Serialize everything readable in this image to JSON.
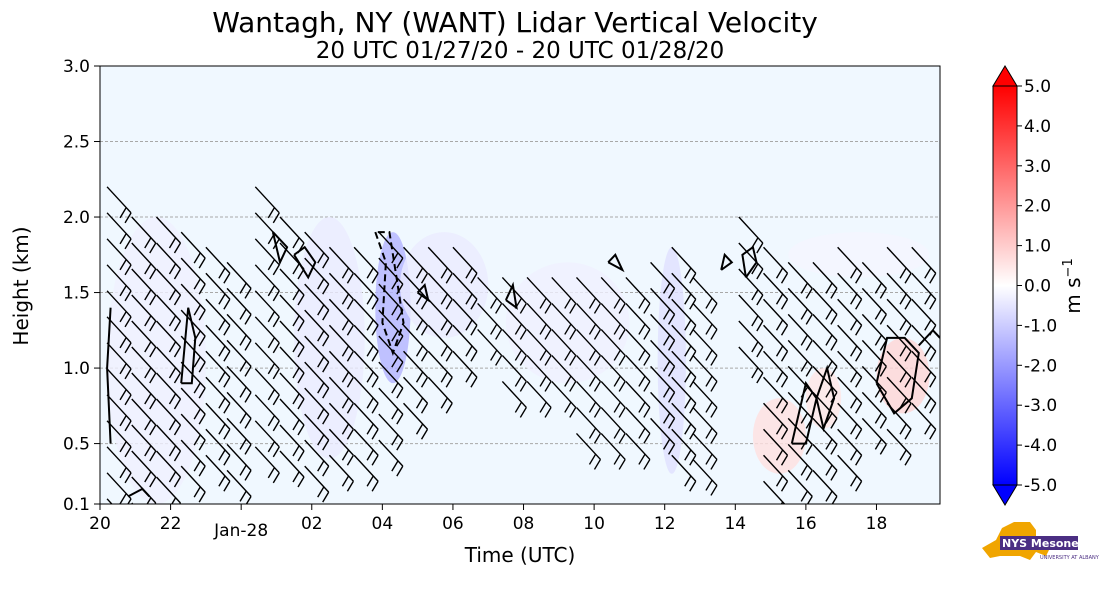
{
  "chart_data": {
    "type": "heatmap",
    "title": "Wantagh, NY (WANT) Lidar Vertical Velocity",
    "subtitle": "20 UTC 01/27/20 - 20 UTC 01/28/20",
    "xlabel": "Time (UTC)",
    "ylabel": "Height (km)",
    "xlim": [
      20,
      43.8
    ],
    "ylim": [
      0.1,
      3.0
    ],
    "x_ticks": [
      {
        "x": 20,
        "label": "20"
      },
      {
        "x": 22,
        "label": "22"
      },
      {
        "x": 24,
        "label": "Jan-28"
      },
      {
        "x": 26,
        "label": "02"
      },
      {
        "x": 28,
        "label": "04"
      },
      {
        "x": 30,
        "label": "06"
      },
      {
        "x": 32,
        "label": "08"
      },
      {
        "x": 34,
        "label": "10"
      },
      {
        "x": 36,
        "label": "12"
      },
      {
        "x": 38,
        "label": "14"
      },
      {
        "x": 40,
        "label": "16"
      },
      {
        "x": 42,
        "label": "18"
      }
    ],
    "y_ticks": [
      {
        "y": 0.1,
        "label": "0.1"
      },
      {
        "y": 0.5,
        "label": "0.5"
      },
      {
        "y": 1.0,
        "label": "1.0"
      },
      {
        "y": 1.5,
        "label": "1.5"
      },
      {
        "y": 2.0,
        "label": "2.0"
      },
      {
        "y": 2.5,
        "label": "2.5"
      },
      {
        "y": 3.0,
        "label": "3.0"
      }
    ],
    "grid": "horizontal dashed",
    "colorbar": {
      "label": "m s",
      "label_exponent": "−1",
      "range": [
        -5.0,
        5.0
      ],
      "ticks": [
        "5.0",
        "4.0",
        "3.0",
        "2.0",
        "1.0",
        "0.0",
        "-1.0",
        "-2.0",
        "-3.0",
        "-4.0",
        "-5.0"
      ],
      "colors": {
        "max": "#ff0000",
        "zero": "#ffffff",
        "min": "#0000ff"
      }
    },
    "velocity_regions": [
      {
        "x": [
          20.2,
          23.0
        ],
        "y": [
          0.1,
          2.0
        ],
        "w": -0.3
      },
      {
        "x": [
          25.5,
          27.5
        ],
        "y": [
          0.4,
          2.0
        ],
        "w": -0.4
      },
      {
        "x": [
          27.8,
          28.8
        ],
        "y": [
          0.9,
          1.9
        ],
        "w": -1.5
      },
      {
        "x": [
          28.5,
          31.0
        ],
        "y": [
          1.2,
          1.9
        ],
        "w": -0.4
      },
      {
        "x": [
          31.5,
          35.0
        ],
        "y": [
          0.9,
          1.7
        ],
        "w": -0.3
      },
      {
        "x": [
          35.8,
          36.6
        ],
        "y": [
          0.3,
          1.8
        ],
        "w": -0.6
      },
      {
        "x": [
          38.5,
          40.0
        ],
        "y": [
          0.3,
          0.8
        ],
        "w": 0.6
      },
      {
        "x": [
          40.0,
          41.0
        ],
        "y": [
          0.6,
          1.0
        ],
        "w": 0.5
      },
      {
        "x": [
          42.0,
          43.5
        ],
        "y": [
          0.7,
          1.2
        ],
        "w": 0.8
      },
      {
        "x": [
          39.5,
          43.5
        ],
        "y": [
          1.6,
          1.9
        ],
        "w": -0.2
      }
    ],
    "wind_columns": [
      {
        "x": 20.2,
        "bottom": 0.1,
        "top": 2.2,
        "barbs": 2
      },
      {
        "x": 20.9,
        "bottom": 0.1,
        "top": 2.0,
        "barbs": 2
      },
      {
        "x": 21.6,
        "bottom": 0.2,
        "top": 2.0,
        "barbs": 2
      },
      {
        "x": 22.3,
        "bottom": 0.2,
        "top": 1.9,
        "barbs": 2
      },
      {
        "x": 23.0,
        "bottom": 0.3,
        "top": 1.8,
        "barbs": 2
      },
      {
        "x": 23.6,
        "bottom": 0.3,
        "top": 1.7,
        "barbs": 2
      },
      {
        "x": 24.4,
        "bottom": 0.4,
        "top": 2.2,
        "barbs": 2
      },
      {
        "x": 25.1,
        "bottom": 0.4,
        "top": 2.0,
        "barbs": 2
      },
      {
        "x": 25.8,
        "bottom": 0.3,
        "top": 1.9,
        "barbs": 2
      },
      {
        "x": 26.5,
        "bottom": 0.3,
        "top": 1.8,
        "barbs": 2
      },
      {
        "x": 27.2,
        "bottom": 0.4,
        "top": 1.8,
        "barbs": 2
      },
      {
        "x": 27.9,
        "bottom": 0.5,
        "top": 1.9,
        "barbs": 2
      },
      {
        "x": 28.6,
        "bottom": 0.6,
        "top": 1.8,
        "barbs": 2
      },
      {
        "x": 29.3,
        "bottom": 0.8,
        "top": 1.8,
        "barbs": 2
      },
      {
        "x": 30.0,
        "bottom": 1.0,
        "top": 1.8,
        "barbs": 2
      },
      {
        "x": 30.7,
        "bottom": 1.1,
        "top": 1.6,
        "barbs": 2
      },
      {
        "x": 31.4,
        "bottom": 0.9,
        "top": 1.6,
        "barbs": 2
      },
      {
        "x": 32.1,
        "bottom": 0.8,
        "top": 1.6,
        "barbs": 2
      },
      {
        "x": 32.8,
        "bottom": 0.8,
        "top": 1.6,
        "barbs": 2
      },
      {
        "x": 33.5,
        "bottom": 0.5,
        "top": 1.6,
        "barbs": 2
      },
      {
        "x": 34.2,
        "bottom": 0.4,
        "top": 1.6,
        "barbs": 2
      },
      {
        "x": 34.9,
        "bottom": 0.5,
        "top": 1.6,
        "barbs": 2
      },
      {
        "x": 35.6,
        "bottom": 0.5,
        "top": 1.7,
        "barbs": 2
      },
      {
        "x": 36.2,
        "bottom": 0.3,
        "top": 1.8,
        "barbs": 2
      },
      {
        "x": 36.8,
        "bottom": 0.3,
        "top": 1.6,
        "barbs": 2
      },
      {
        "x": 38.1,
        "bottom": 1.1,
        "top": 2.0,
        "barbs": 2
      },
      {
        "x": 38.8,
        "bottom": 0.2,
        "top": 1.8,
        "barbs": 2
      },
      {
        "x": 39.5,
        "bottom": 0.2,
        "top": 1.7,
        "barbs": 2
      },
      {
        "x": 40.2,
        "bottom": 0.3,
        "top": 1.7,
        "barbs": 2
      },
      {
        "x": 40.9,
        "bottom": 0.4,
        "top": 1.8,
        "barbs": 2
      },
      {
        "x": 41.6,
        "bottom": 0.5,
        "top": 1.7,
        "barbs": 2
      },
      {
        "x": 42.3,
        "bottom": 0.5,
        "top": 1.8,
        "barbs": 2
      },
      {
        "x": 43.0,
        "bottom": 0.6,
        "top": 1.8,
        "barbs": 2
      }
    ],
    "contours": [
      {
        "style": "solid",
        "points": [
          [
            22.3,
            0.9
          ],
          [
            22.5,
            1.4
          ],
          [
            22.7,
            1.2
          ],
          [
            22.6,
            0.9
          ],
          [
            22.3,
            0.9
          ]
        ]
      },
      {
        "style": "solid",
        "points": [
          [
            24.9,
            1.9
          ],
          [
            25.3,
            1.8
          ],
          [
            25.1,
            1.7
          ],
          [
            24.9,
            1.9
          ]
        ]
      },
      {
        "style": "solid",
        "points": [
          [
            25.5,
            1.75
          ],
          [
            25.9,
            1.6
          ],
          [
            26.1,
            1.7
          ],
          [
            25.8,
            1.8
          ],
          [
            25.5,
            1.75
          ]
        ]
      },
      {
        "style": "dashed",
        "points": [
          [
            27.8,
            1.9
          ],
          [
            28.1,
            1.7
          ],
          [
            28.0,
            1.3
          ],
          [
            28.3,
            1.1
          ],
          [
            28.6,
            1.3
          ],
          [
            28.4,
            1.6
          ],
          [
            28.2,
            1.9
          ],
          [
            27.8,
            1.9
          ]
        ]
      },
      {
        "style": "solid",
        "points": [
          [
            29.0,
            1.5
          ],
          [
            29.3,
            1.45
          ],
          [
            29.2,
            1.55
          ],
          [
            29.0,
            1.5
          ]
        ]
      },
      {
        "style": "solid",
        "points": [
          [
            31.5,
            1.45
          ],
          [
            31.8,
            1.4
          ],
          [
            31.7,
            1.55
          ],
          [
            31.5,
            1.45
          ]
        ]
      },
      {
        "style": "solid",
        "points": [
          [
            34.4,
            1.7
          ],
          [
            34.8,
            1.65
          ],
          [
            34.6,
            1.75
          ],
          [
            34.4,
            1.7
          ]
        ]
      },
      {
        "style": "solid",
        "points": [
          [
            37.6,
            1.65
          ],
          [
            37.9,
            1.7
          ],
          [
            37.7,
            1.75
          ],
          [
            37.6,
            1.65
          ]
        ]
      },
      {
        "style": "solid",
        "points": [
          [
            38.3,
            1.6
          ],
          [
            38.6,
            1.7
          ],
          [
            38.5,
            1.8
          ],
          [
            38.2,
            1.75
          ],
          [
            38.3,
            1.6
          ]
        ]
      },
      {
        "style": "solid",
        "points": [
          [
            39.6,
            0.5
          ],
          [
            40.0,
            0.9
          ],
          [
            40.3,
            0.8
          ],
          [
            40.0,
            0.5
          ],
          [
            39.6,
            0.5
          ]
        ]
      },
      {
        "style": "solid",
        "points": [
          [
            40.3,
            0.8
          ],
          [
            40.6,
            1.0
          ],
          [
            40.8,
            0.8
          ],
          [
            40.5,
            0.6
          ],
          [
            40.3,
            0.8
          ]
        ]
      },
      {
        "style": "solid",
        "points": [
          [
            42.0,
            0.9
          ],
          [
            42.3,
            1.2
          ],
          [
            42.8,
            1.2
          ],
          [
            43.2,
            1.1
          ],
          [
            43.0,
            0.8
          ],
          [
            42.5,
            0.7
          ],
          [
            42.0,
            0.9
          ]
        ]
      },
      {
        "style": "solid",
        "points": [
          [
            43.2,
            1.15
          ],
          [
            43.6,
            1.25
          ],
          [
            43.8,
            1.2
          ]
        ]
      },
      {
        "style": "solid",
        "points": [
          [
            20.3,
            1.4
          ],
          [
            20.2,
            1.0
          ],
          [
            20.3,
            0.5
          ]
        ]
      },
      {
        "style": "solid",
        "points": [
          [
            20.8,
            0.15
          ],
          [
            21.2,
            0.2
          ],
          [
            21.4,
            0.15
          ]
        ]
      }
    ]
  }
}
